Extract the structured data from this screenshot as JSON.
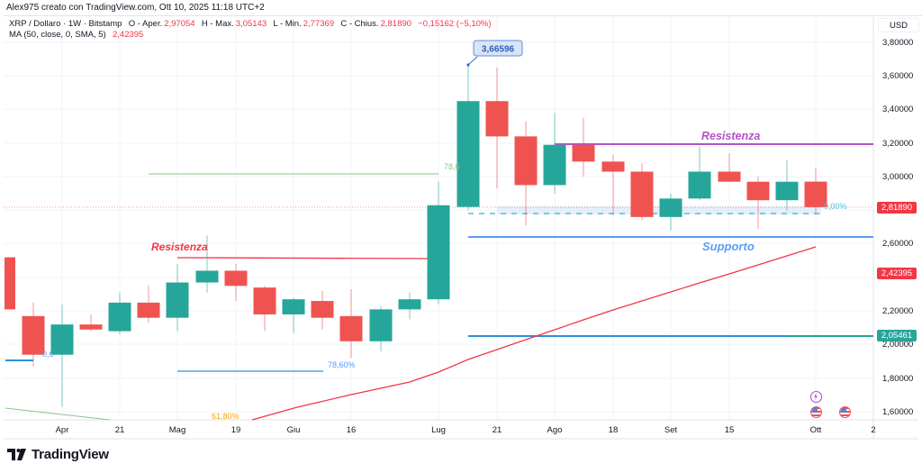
{
  "caption": "Alex975 creato con TradingView.com, Ott 10, 2025 11:18 UTC+2",
  "legend": {
    "symbol": "XRP / Dollaro · 1W · Bitstamp",
    "open_label": "O - Aper.",
    "open_value": "2,97054",
    "high_label": "H - Max.",
    "high_value": "3,05143",
    "low_label": "L - Min.",
    "low_value": "2,77369",
    "close_label": "C - Chius.",
    "close_value": "2,81890",
    "change_value": "−0,15162 (−5,10%)",
    "ma_label": "MA (50, close, 0, SMA, 5)",
    "ma_value": "2,42395"
  },
  "price_axis": {
    "currency": "USD",
    "ticks": [
      "3,80000",
      "3,60000",
      "3,40000",
      "3,20000",
      "3,00000",
      "2,60000",
      "2,20000",
      "2,00000",
      "1,80000",
      "1,60000"
    ],
    "last_price_tag": "2,81890",
    "ma_tag": "2,42395",
    "support_tag": "2,05461"
  },
  "time_axis": {
    "ticks": [
      "Apr",
      "21",
      "Mag",
      "19",
      "Giu",
      "16",
      "Lug",
      "21",
      "Ago",
      "18",
      "Set",
      "15",
      "Ott",
      "2"
    ]
  },
  "annotations": {
    "high_callout": "3,66596",
    "resistance_left": "Resistenza",
    "resistance_right": "Resistenza",
    "support": "Supporto",
    "fib_786_low": "78,60%",
    "fib_786_high": "78,6",
    "fib_618": "61,80%",
    "fib_0": "0,00%",
    "fib_left": "0,6"
  },
  "colors": {
    "up": "#26a69a",
    "down": "#ef5350",
    "ma_line": "#f23645",
    "resistance_purple": "#b452c9",
    "support_blue": "#5b9cf6",
    "blue_line": "#2f8fdc",
    "green_fib": "#8bc48a",
    "orange_fib": "#f7a600"
  },
  "footer": {
    "brand": "TradingView"
  },
  "chart_data": {
    "type": "candlestick",
    "title": "XRP / Dollaro · 1W · Bitstamp",
    "xlabel": "",
    "ylabel": "USD",
    "ylim": [
      1.55,
      3.85
    ],
    "candles": [
      {
        "o": 2.52,
        "h": 2.52,
        "l": 2.21,
        "c": 2.21
      },
      {
        "o": 2.17,
        "h": 2.25,
        "l": 1.87,
        "c": 1.94
      },
      {
        "o": 1.94,
        "h": 2.24,
        "l": 1.63,
        "c": 2.12
      },
      {
        "o": 2.12,
        "h": 2.18,
        "l": 2.08,
        "c": 2.09
      },
      {
        "o": 2.08,
        "h": 2.31,
        "l": 2.06,
        "c": 2.25
      },
      {
        "o": 2.25,
        "h": 2.35,
        "l": 2.13,
        "c": 2.16
      },
      {
        "o": 2.16,
        "h": 2.48,
        "l": 2.08,
        "c": 2.37
      },
      {
        "o": 2.37,
        "h": 2.65,
        "l": 2.31,
        "c": 2.44
      },
      {
        "o": 2.44,
        "h": 2.48,
        "l": 2.26,
        "c": 2.35
      },
      {
        "o": 2.34,
        "h": 2.35,
        "l": 2.08,
        "c": 2.18
      },
      {
        "o": 2.18,
        "h": 2.28,
        "l": 2.07,
        "c": 2.27
      },
      {
        "o": 2.26,
        "h": 2.32,
        "l": 2.09,
        "c": 2.16
      },
      {
        "o": 2.17,
        "h": 2.33,
        "l": 1.92,
        "c": 2.02
      },
      {
        "o": 2.02,
        "h": 2.23,
        "l": 1.96,
        "c": 2.21
      },
      {
        "o": 2.21,
        "h": 2.31,
        "l": 2.15,
        "c": 2.27
      },
      {
        "o": 2.27,
        "h": 2.97,
        "l": 2.24,
        "c": 2.83
      },
      {
        "o": 2.82,
        "h": 3.66596,
        "l": 2.8,
        "c": 3.45
      },
      {
        "o": 3.45,
        "h": 3.65,
        "l": 2.93,
        "c": 3.24
      },
      {
        "o": 3.24,
        "h": 3.33,
        "l": 2.71,
        "c": 2.95
      },
      {
        "o": 2.95,
        "h": 3.38,
        "l": 2.9,
        "c": 3.19
      },
      {
        "o": 3.19,
        "h": 3.35,
        "l": 3.0,
        "c": 3.09
      },
      {
        "o": 3.09,
        "h": 3.13,
        "l": 2.77,
        "c": 3.03
      },
      {
        "o": 3.03,
        "h": 3.08,
        "l": 2.74,
        "c": 2.76
      },
      {
        "o": 2.76,
        "h": 2.9,
        "l": 2.68,
        "c": 2.87
      },
      {
        "o": 2.87,
        "h": 3.18,
        "l": 2.86,
        "c": 3.03
      },
      {
        "o": 3.03,
        "h": 3.14,
        "l": 2.97,
        "c": 2.97
      },
      {
        "o": 2.97,
        "h": 3.0,
        "l": 2.69,
        "c": 2.86
      },
      {
        "o": 2.86,
        "h": 3.1,
        "l": 2.8,
        "c": 2.97
      },
      {
        "o": 2.97054,
        "h": 3.05143,
        "l": 2.77369,
        "c": 2.8189
      }
    ],
    "ma_line": {
      "name": "MA 50",
      "last_value": 2.42395
    },
    "horizontal_levels": [
      {
        "name": "Resistenza (right)",
        "value": 3.19
      },
      {
        "name": "Supporto",
        "value": 2.64
      },
      {
        "name": "Resistenza (left)",
        "value": 2.49
      },
      {
        "name": "Support line",
        "value": 2.05461
      },
      {
        "name": "Fib 78.6% (upper)",
        "value": 3.02
      },
      {
        "name": "Fib 78.6% (lower)",
        "value": 1.84
      }
    ],
    "grid": true,
    "legend_position": "top-left"
  }
}
